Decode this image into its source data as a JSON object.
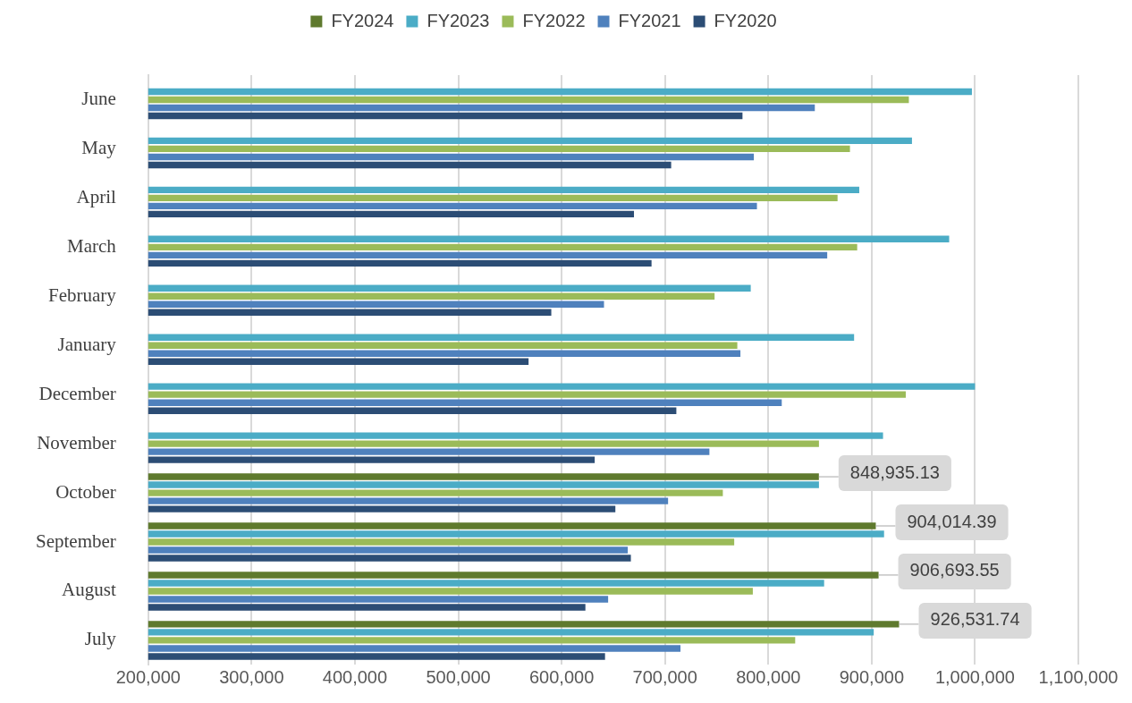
{
  "chart_data": {
    "type": "bar",
    "orientation": "horizontal",
    "legend": "top",
    "grid": "x",
    "categories": [
      "June",
      "May",
      "April",
      "March",
      "February",
      "January",
      "December",
      "November",
      "October",
      "September",
      "August",
      "July"
    ],
    "xlim": [
      200000,
      1100000
    ],
    "xticks": [
      {
        "value": 200000,
        "label": "200,000"
      },
      {
        "value": 300000,
        "label": "300,000"
      },
      {
        "value": 400000,
        "label": "400,000"
      },
      {
        "value": 500000,
        "label": "500,000"
      },
      {
        "value": 600000,
        "label": "600,000"
      },
      {
        "value": 700000,
        "label": "700,000"
      },
      {
        "value": 800000,
        "label": "800,000"
      },
      {
        "value": 900000,
        "label": "900,000"
      },
      {
        "value": 1000000,
        "label": "1,000,000"
      },
      {
        "value": 1100000,
        "label": "1,100,000"
      }
    ],
    "series": [
      {
        "name": "FY2024",
        "color": "#5f7a2e",
        "values": [
          null,
          null,
          null,
          null,
          null,
          null,
          null,
          null,
          848935.13,
          904014.39,
          906693.55,
          926531.74
        ],
        "value_labels": [
          null,
          null,
          null,
          null,
          null,
          null,
          null,
          null,
          "848,935.13",
          "904,014.39",
          "906,693.55",
          "926,531.74"
        ]
      },
      {
        "name": "FY2023",
        "color": "#4bacc6",
        "values": [
          997000,
          939000,
          888000,
          975000,
          783000,
          883000,
          1000000,
          911000,
          849000,
          912000,
          854000,
          902000
        ]
      },
      {
        "name": "FY2022",
        "color": "#9bbb59",
        "values": [
          936000,
          879000,
          867000,
          886000,
          748000,
          770000,
          933000,
          849000,
          756000,
          767000,
          785000,
          826000
        ]
      },
      {
        "name": "FY2021",
        "color": "#4f81bd",
        "values": [
          845000,
          786000,
          789000,
          857000,
          641000,
          773000,
          813000,
          743000,
          703000,
          664000,
          645000,
          715000
        ]
      },
      {
        "name": "FY2020",
        "color": "#2c4d75",
        "values": [
          775000,
          706000,
          670000,
          687000,
          590000,
          568000,
          711000,
          632000,
          652000,
          667000,
          623000,
          642000
        ]
      }
    ]
  }
}
